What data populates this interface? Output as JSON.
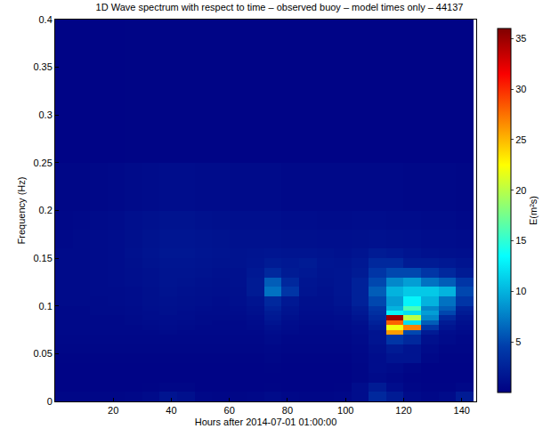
{
  "chart_data": {
    "type": "heatmap",
    "title": "1D Wave spectrum with respect to time – observed buoy – model times only – 44137",
    "x_label": "Hours after 2014-07-01 01:00:00",
    "y_label": "Frequency (Hz)",
    "colorbar_title": "E(m²s)",
    "color": "Jet",
    "grid": false,
    "xlim": [
      0,
      145
    ],
    "ylim": [
      0,
      0.4
    ],
    "xticks": [
      20,
      40,
      60,
      80,
      100,
      120,
      140
    ],
    "yticks": [
      0,
      0.05,
      0.1,
      0.15,
      0.2,
      0.25,
      0.3,
      0.35,
      0.4
    ],
    "zlim": [
      0,
      36
    ],
    "zticks": [
      5,
      10,
      15,
      20,
      25,
      30,
      35
    ],
    "x_edges": [
      0,
      6,
      12,
      18,
      24,
      30,
      36,
      42,
      48,
      54,
      60,
      66,
      72,
      78,
      84,
      90,
      96,
      102,
      108,
      114,
      120,
      126,
      132,
      138,
      144
    ],
    "y_edges": [
      0,
      0.01,
      0.02,
      0.03,
      0.04,
      0.05,
      0.06,
      0.07,
      0.075,
      0.08,
      0.085,
      0.09,
      0.095,
      0.1,
      0.11,
      0.12,
      0.13,
      0.14,
      0.15,
      0.16,
      0.18,
      0.2,
      0.25,
      0.4
    ],
    "z": [
      [
        0.5,
        0.5,
        0.5,
        0.5,
        0.6,
        0.8,
        1.5,
        1.2,
        0.6,
        0.5,
        0.5,
        0.6,
        0.8,
        0.6,
        0.5,
        0.5,
        0.6,
        1,
        3,
        2,
        0.8,
        0.6,
        0.8,
        2
      ],
      [
        0.3,
        0.3,
        0.3,
        0.3,
        0.3,
        0.4,
        0.5,
        0.5,
        0.3,
        0.3,
        0.3,
        0.3,
        0.4,
        0.3,
        0.3,
        0.3,
        0.4,
        1,
        2,
        1,
        0.5,
        0.4,
        0.4,
        0.6
      ],
      [
        0.3,
        0.3,
        0.3,
        0.3,
        0.3,
        0.3,
        0.3,
        0.3,
        0.3,
        0.3,
        0.3,
        0.3,
        0.3,
        0.3,
        0.3,
        0.3,
        0.3,
        0.5,
        0.8,
        0.6,
        0.4,
        0.3,
        0.3,
        0.3
      ],
      [
        0.3,
        0.3,
        0.3,
        0.3,
        0.3,
        0.3,
        0.3,
        0.3,
        0.3,
        0.3,
        0.3,
        0.3,
        0.4,
        0.3,
        0.3,
        0.3,
        0.3,
        0.5,
        1,
        0.8,
        0.5,
        0.3,
        0.3,
        0.3
      ],
      [
        0.4,
        0.4,
        0.4,
        0.4,
        0.4,
        0.4,
        0.4,
        0.4,
        0.4,
        0.4,
        0.4,
        0.4,
        0.5,
        0.4,
        0.4,
        0.4,
        0.4,
        0.6,
        1,
        1.5,
        1.5,
        0.6,
        0.4,
        0.4
      ],
      [
        0.5,
        0.5,
        0.5,
        0.5,
        0.5,
        0.5,
        0.5,
        0.5,
        0.5,
        0.5,
        0.5,
        0.5,
        0.6,
        0.5,
        0.5,
        0.5,
        0.5,
        0.7,
        1.2,
        2,
        1.5,
        0.8,
        0.5,
        0.5
      ],
      [
        0.6,
        0.6,
        0.6,
        0.6,
        0.6,
        0.6,
        0.6,
        0.6,
        0.6,
        0.6,
        0.6,
        0.6,
        0.8,
        0.6,
        0.6,
        0.6,
        0.6,
        0.8,
        1.5,
        4,
        3,
        1.2,
        0.8,
        0.6
      ],
      [
        0.7,
        0.7,
        0.7,
        0.7,
        0.7,
        0.7,
        0.8,
        0.7,
        0.7,
        0.7,
        0.7,
        0.7,
        1,
        0.8,
        0.7,
        0.7,
        0.7,
        1,
        1.5,
        26,
        5,
        2,
        1,
        0.8
      ],
      [
        0.7,
        0.7,
        0.7,
        0.7,
        0.7,
        0.8,
        0.9,
        0.8,
        0.7,
        0.7,
        0.7,
        0.8,
        1.2,
        0.9,
        0.7,
        0.7,
        0.8,
        1,
        2,
        22,
        27,
        4,
        1.5,
        1
      ],
      [
        0.7,
        0.7,
        0.7,
        0.7,
        0.8,
        0.9,
        1,
        0.9,
        0.8,
        0.7,
        0.7,
        0.9,
        1.5,
        1,
        0.8,
        0.8,
        0.9,
        1.2,
        2.5,
        28,
        12,
        6,
        2,
        1.2
      ],
      [
        0.7,
        0.7,
        0.7,
        0.7,
        0.8,
        1,
        1,
        1,
        0.8,
        0.8,
        0.8,
        1,
        1.8,
        1.2,
        0.9,
        0.9,
        1,
        1.5,
        3,
        35,
        20,
        8,
        3,
        1.5
      ],
      [
        0.7,
        0.7,
        0.8,
        0.8,
        0.9,
        1,
        1.2,
        1,
        0.9,
        0.9,
        0.9,
        1.2,
        2,
        1.4,
        1,
        1,
        1.2,
        1.8,
        3.5,
        13,
        12,
        9,
        5,
        2
      ],
      [
        0.7,
        0.7,
        0.8,
        0.8,
        0.9,
        1.1,
        1.2,
        1.1,
        1,
        0.9,
        1,
        1.3,
        2.5,
        1.5,
        1.1,
        1.1,
        1.3,
        2,
        4,
        10,
        16,
        8,
        6,
        2.5
      ],
      [
        0.8,
        0.8,
        0.8,
        0.9,
        1,
        1.2,
        1.3,
        1.2,
        1.1,
        1,
        1.1,
        1.5,
        3,
        1.8,
        1.2,
        1.2,
        1.5,
        2.5,
        5,
        9,
        13,
        10,
        7,
        4
      ],
      [
        0.8,
        0.8,
        0.9,
        0.9,
        1,
        1.2,
        1.4,
        1.3,
        1.2,
        1.1,
        1.2,
        2,
        7,
        4,
        1.5,
        1.3,
        1.6,
        2.5,
        6,
        10,
        11,
        11,
        10,
        5
      ],
      [
        0.8,
        0.8,
        0.9,
        1,
        1.1,
        1.3,
        1.5,
        1.4,
        1.3,
        1.2,
        1.3,
        2,
        6,
        3,
        1.6,
        1.4,
        1.6,
        2.5,
        5,
        8,
        9,
        7,
        6,
        4
      ],
      [
        0.8,
        0.8,
        0.9,
        1,
        1.1,
        1.3,
        1.5,
        1.5,
        1.4,
        1.3,
        1.3,
        1.8,
        3,
        2,
        1.8,
        1.5,
        1.6,
        2,
        4,
        5,
        5,
        4,
        3,
        2
      ],
      [
        0.8,
        0.8,
        0.9,
        1,
        1.2,
        1.4,
        1.6,
        1.6,
        1.5,
        1.4,
        1.4,
        1.6,
        2,
        1.8,
        2,
        1.6,
        1.5,
        1.8,
        3,
        3,
        2,
        2,
        1.8,
        1.5
      ],
      [
        0.8,
        0.8,
        0.9,
        1,
        1.3,
        1.5,
        1.7,
        1.7,
        1.6,
        1.5,
        1.4,
        1.5,
        1.6,
        1.5,
        1.5,
        1.4,
        1.3,
        1.5,
        2,
        1.8,
        1.5,
        1.3,
        1.2,
        1.1
      ],
      [
        0.7,
        0.8,
        0.9,
        1,
        1.2,
        1.4,
        1.6,
        1.6,
        1.5,
        1.4,
        1.3,
        1.3,
        1.3,
        1.2,
        1.2,
        1.1,
        1.1,
        1.2,
        1.3,
        1.2,
        1.1,
        1,
        1,
        0.9
      ],
      [
        0.6,
        0.7,
        0.8,
        0.9,
        1.1,
        1.3,
        1.4,
        1.4,
        1.3,
        1.2,
        1.1,
        1.1,
        1.1,
        1,
        1,
        0.9,
        0.9,
        1,
        1,
        0.9,
        0.9,
        0.8,
        0.8,
        0.7
      ],
      [
        0.5,
        0.5,
        0.6,
        0.7,
        0.8,
        0.9,
        1,
        1,
        0.9,
        0.9,
        0.8,
        0.8,
        0.8,
        0.7,
        0.7,
        0.7,
        0.7,
        0.7,
        0.7,
        0.7,
        0.6,
        0.6,
        0.6,
        0.5
      ],
      [
        0.3,
        0.3,
        0.3,
        0.3,
        0.4,
        0.4,
        0.4,
        0.4,
        0.4,
        0.4,
        0.3,
        0.3,
        0.3,
        0.3,
        0.3,
        0.3,
        0.3,
        0.3,
        0.3,
        0.3,
        0.3,
        0.3,
        0.3,
        0.3
      ]
    ]
  }
}
